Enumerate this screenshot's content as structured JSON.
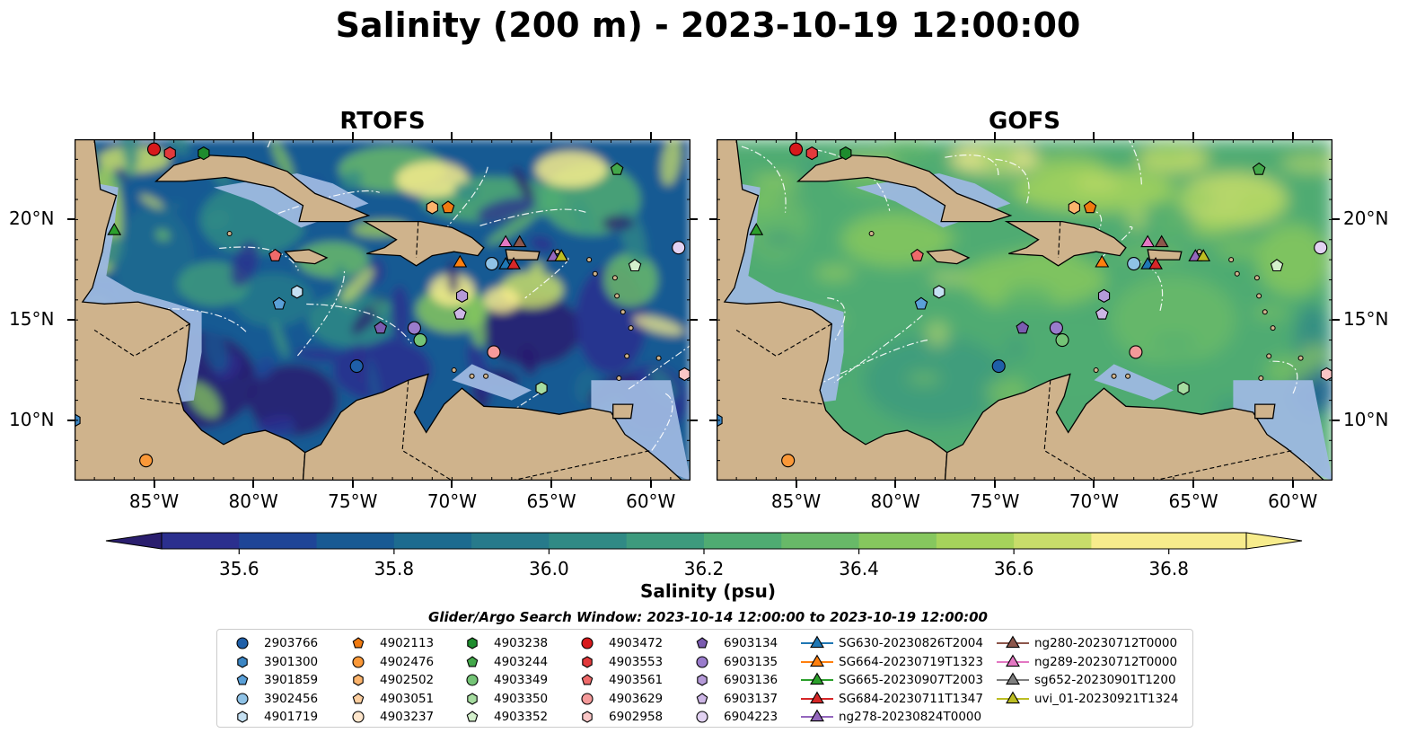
{
  "title": "Salinity (200 m) - 2023-10-19 12:00:00",
  "panels": [
    {
      "name": "RTOFS",
      "style": "rtofs"
    },
    {
      "name": "GOFS",
      "style": "gofs"
    }
  ],
  "map": {
    "lon_range": [
      -89,
      -58
    ],
    "lat_range": [
      7,
      24
    ],
    "lon_ticks": [
      {
        "v": -85,
        "label": "85°W"
      },
      {
        "v": -80,
        "label": "80°W"
      },
      {
        "v": -75,
        "label": "75°W"
      },
      {
        "v": -70,
        "label": "70°W"
      },
      {
        "v": -65,
        "label": "65°W"
      },
      {
        "v": -60,
        "label": "60°W"
      }
    ],
    "lat_ticks": [
      {
        "v": 20,
        "label": "20°N"
      },
      {
        "v": 15,
        "label": "15°N"
      },
      {
        "v": 10,
        "label": "10°N"
      }
    ],
    "colors": {
      "ocean_shelf": "#9db8e0",
      "land": "#cfb38c",
      "coast": "#000000"
    }
  },
  "colorbar": {
    "label": "Salinity (psu)",
    "min": 35.5,
    "max": 36.9,
    "step": 0.1,
    "ticks": [
      {
        "v": 35.6,
        "label": "35.6"
      },
      {
        "v": 35.8,
        "label": "35.8"
      },
      {
        "v": 36.0,
        "label": "36.0"
      },
      {
        "v": 36.2,
        "label": "36.2"
      },
      {
        "v": 36.4,
        "label": "36.4"
      },
      {
        "v": 36.6,
        "label": "36.6"
      },
      {
        "v": 36.8,
        "label": "36.8"
      }
    ],
    "colors": [
      "#2a1e6e",
      "#2b2f8e",
      "#1f4597",
      "#185a93",
      "#1d6b8f",
      "#277a8b",
      "#308a85",
      "#3d9a7d",
      "#4fab72",
      "#68b968",
      "#86c75e",
      "#a6d35b",
      "#c8dd6a",
      "#f7ec8c"
    ]
  },
  "legend": {
    "title": "Glider/Argo Search Window: 2023-10-14 12:00:00 to 2023-10-19 12:00:00",
    "items": [
      {
        "label": "2903766",
        "marker": "circle",
        "color": "#1f5fa8"
      },
      {
        "label": "3901300",
        "marker": "hexagon",
        "color": "#3c86c4"
      },
      {
        "label": "3901859",
        "marker": "pentagon",
        "color": "#5aa0d8"
      },
      {
        "label": "3902456",
        "marker": "circle",
        "color": "#8fc2e6"
      },
      {
        "label": "4901719",
        "marker": "hexagon",
        "color": "#c5e0f2"
      },
      {
        "label": "4902113",
        "marker": "pentagon",
        "color": "#f07a10"
      },
      {
        "label": "4902476",
        "marker": "circle",
        "color": "#fa9838"
      },
      {
        "label": "4902502",
        "marker": "hexagon",
        "color": "#fcb46c"
      },
      {
        "label": "4903051",
        "marker": "pentagon",
        "color": "#fdcfa0"
      },
      {
        "label": "4903237",
        "marker": "circle",
        "color": "#fee6cc"
      },
      {
        "label": "4903238",
        "marker": "hexagon",
        "color": "#1e8c2e"
      },
      {
        "label": "4903244",
        "marker": "pentagon",
        "color": "#43a84a"
      },
      {
        "label": "4903349",
        "marker": "circle",
        "color": "#74c476"
      },
      {
        "label": "4903350",
        "marker": "hexagon",
        "color": "#a6dca0"
      },
      {
        "label": "4903352",
        "marker": "pentagon",
        "color": "#d4f0cc"
      },
      {
        "label": "4903472",
        "marker": "circle",
        "color": "#d7191c"
      },
      {
        "label": "4903553",
        "marker": "hexagon",
        "color": "#e23a3c"
      },
      {
        "label": "4903561",
        "marker": "pentagon",
        "color": "#ef6a6a"
      },
      {
        "label": "4903629",
        "marker": "circle",
        "color": "#f59a9a"
      },
      {
        "label": "6902958",
        "marker": "hexagon",
        "color": "#fac6c6"
      },
      {
        "label": "6903134",
        "marker": "pentagon",
        "color": "#7b5cb0"
      },
      {
        "label": "6903135",
        "marker": "circle",
        "color": "#9a7ccc"
      },
      {
        "label": "6903136",
        "marker": "hexagon",
        "color": "#b59ad8"
      },
      {
        "label": "6903137",
        "marker": "pentagon",
        "color": "#cdb6e6"
      },
      {
        "label": "6904223",
        "marker": "circle",
        "color": "#e2d2f2"
      },
      {
        "label": "SG630-20230826T2004",
        "marker": "triangle",
        "color": "#1f77b4",
        "line": true
      },
      {
        "label": "SG664-20230719T1323",
        "marker": "triangle",
        "color": "#ff7f0e",
        "line": true
      },
      {
        "label": "SG665-20230907T2003",
        "marker": "triangle",
        "color": "#2ca02c",
        "line": true
      },
      {
        "label": "SG684-20230711T1347",
        "marker": "triangle",
        "color": "#d62728",
        "line": true
      },
      {
        "label": "ng278-20230824T0000",
        "marker": "triangle",
        "color": "#9467bd",
        "line": true
      },
      {
        "label": "ng280-20230712T0000",
        "marker": "triangle",
        "color": "#8c564b",
        "line": true
      },
      {
        "label": "ng289-20230712T0000",
        "marker": "triangle",
        "color": "#e377c2",
        "line": true
      },
      {
        "label": "sg652-20230901T1200",
        "marker": "triangle",
        "color": "#7f7f7f",
        "line": true
      },
      {
        "label": "uvi_01-20230921T1324",
        "marker": "triangle",
        "color": "#bcbd22",
        "line": true
      }
    ]
  },
  "observations": [
    {
      "id": "4903472",
      "lon": -85.0,
      "lat": 23.5
    },
    {
      "id": "4903553",
      "lon": -84.2,
      "lat": 23.3
    },
    {
      "id": "4903238",
      "lon": -82.5,
      "lat": 23.3
    },
    {
      "id": "4903244",
      "lon": -61.7,
      "lat": 22.5
    },
    {
      "id": "4902502",
      "lon": -71.0,
      "lat": 20.6
    },
    {
      "id": "4902113",
      "lon": -70.2,
      "lat": 20.6
    },
    {
      "id": "4903561",
      "lon": -78.9,
      "lat": 18.2
    },
    {
      "id": "3901859",
      "lon": -78.7,
      "lat": 15.8
    },
    {
      "id": "4901719",
      "lon": -77.8,
      "lat": 16.4
    },
    {
      "id": "6903134",
      "lon": -73.6,
      "lat": 14.6
    },
    {
      "id": "6903135",
      "lon": -71.9,
      "lat": 14.6
    },
    {
      "id": "4903349",
      "lon": -71.6,
      "lat": 14.0
    },
    {
      "id": "6903137",
      "lon": -69.6,
      "lat": 15.3
    },
    {
      "id": "6903136",
      "lon": -69.5,
      "lat": 16.2
    },
    {
      "id": "2903766",
      "lon": -74.8,
      "lat": 12.7
    },
    {
      "id": "4903629",
      "lon": -67.9,
      "lat": 13.4
    },
    {
      "id": "4903350",
      "lon": -65.5,
      "lat": 11.6
    },
    {
      "id": "3902456",
      "lon": -68.0,
      "lat": 17.8
    },
    {
      "id": "4903352",
      "lon": -60.8,
      "lat": 17.7
    },
    {
      "id": "6904223",
      "lon": -58.6,
      "lat": 18.6
    },
    {
      "id": "6902958",
      "lon": -58.3,
      "lat": 12.3
    },
    {
      "id": "3901300",
      "lon": -89.0,
      "lat": 10.0
    },
    {
      "id": "4902476",
      "lon": -85.4,
      "lat": 8.0
    },
    {
      "id": "SG665-20230907T2003",
      "lon": -87.0,
      "lat": 19.5
    },
    {
      "id": "SG664-20230719T1323",
      "lon": -69.6,
      "lat": 17.9
    },
    {
      "id": "SG630-20230826T2004",
      "lon": -67.3,
      "lat": 17.8
    },
    {
      "id": "SG684-20230711T1347",
      "lon": -66.9,
      "lat": 17.8
    },
    {
      "id": "ng289-20230712T0000",
      "lon": -67.3,
      "lat": 18.9
    },
    {
      "id": "ng280-20230712T0000",
      "lon": -66.6,
      "lat": 18.9
    },
    {
      "id": "ng278-20230824T0000",
      "lon": -64.9,
      "lat": 18.2
    },
    {
      "id": "uvi_01-20230921T1324",
      "lon": -64.5,
      "lat": 18.2
    }
  ]
}
